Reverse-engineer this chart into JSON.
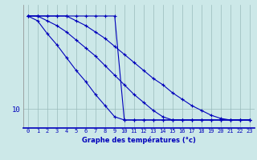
{
  "xlabel": "Graphe des températures (°c)",
  "x": [
    0,
    1,
    2,
    3,
    4,
    5,
    6,
    7,
    8,
    9,
    10,
    11,
    12,
    13,
    14,
    15,
    16,
    17,
    18,
    19,
    20,
    21,
    22,
    23
  ],
  "line1": [
    15.8,
    15.8,
    15.8,
    15.8,
    15.8,
    15.8,
    15.8,
    15.8,
    15.8,
    15.8,
    9.3,
    9.3,
    9.3,
    9.3,
    9.3,
    9.3,
    9.3,
    9.3,
    9.3,
    9.3,
    9.3,
    9.3,
    9.3,
    9.3
  ],
  "line2": [
    15.8,
    15.5,
    14.7,
    14.0,
    13.2,
    12.4,
    11.7,
    10.9,
    10.2,
    9.5,
    9.3,
    9.3,
    9.3,
    9.3,
    9.3,
    9.3,
    9.3,
    9.3,
    9.3,
    9.3,
    9.3,
    9.3,
    9.3,
    9.3
  ],
  "line3": [
    15.8,
    15.8,
    15.5,
    15.2,
    14.8,
    14.3,
    13.8,
    13.3,
    12.7,
    12.1,
    11.5,
    10.9,
    10.4,
    9.9,
    9.5,
    9.3,
    9.3,
    9.3,
    9.3,
    9.3,
    9.3,
    9.3,
    9.3,
    9.3
  ],
  "line4": [
    15.8,
    15.8,
    15.8,
    15.8,
    15.8,
    15.5,
    15.2,
    14.8,
    14.4,
    13.9,
    13.4,
    12.9,
    12.4,
    11.9,
    11.5,
    11.0,
    10.6,
    10.2,
    9.9,
    9.6,
    9.4,
    9.3,
    9.3,
    9.3
  ],
  "bg_color": "#cce8e8",
  "line_color": "#0000bb",
  "grid_color": "#99bbbb",
  "ytick_val": 10,
  "ylim_bottom": 8.8,
  "ylim_top": 16.5,
  "xlim_left": -0.5,
  "xlim_right": 23.5,
  "marker": "+",
  "markersize": 3,
  "linewidth": 0.8,
  "tick_fontsize": 5.0,
  "label_fontsize": 6.0
}
